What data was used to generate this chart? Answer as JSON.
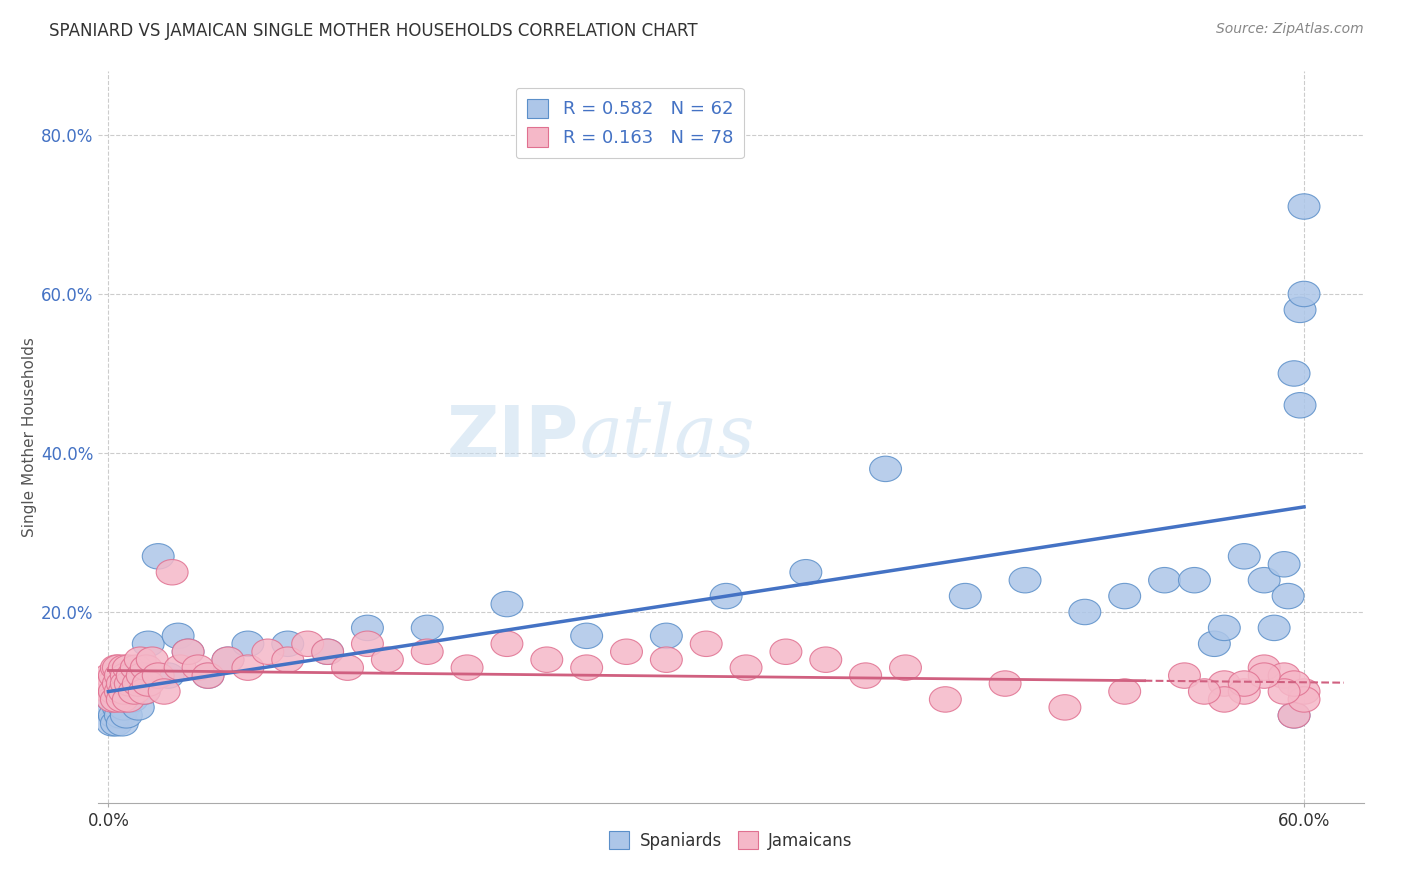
{
  "title": "SPANIARD VS JAMAICAN SINGLE MOTHER HOUSEHOLDS CORRELATION CHART",
  "source": "Source: ZipAtlas.com",
  "ylabel": "Single Mother Households",
  "xlim": [
    -0.005,
    0.63
  ],
  "ylim": [
    -0.04,
    0.88
  ],
  "xticks": [
    0.0,
    0.6
  ],
  "xtick_labels": [
    "0.0%",
    "60.0%"
  ],
  "yticks": [
    0.0,
    0.2,
    0.4,
    0.6,
    0.8
  ],
  "ytick_labels": [
    "",
    "20.0%",
    "40.0%",
    "60.0%",
    "80.0%"
  ],
  "spaniard_color": "#adc6e8",
  "jamaican_color": "#f5b8c8",
  "spaniard_edge_color": "#5b8fc9",
  "jamaican_edge_color": "#e07090",
  "spaniard_line_color": "#4472c4",
  "jamaican_line_color": "#d06080",
  "R_spaniard": 0.582,
  "N_spaniard": 62,
  "R_jamaican": 0.163,
  "N_jamaican": 78,
  "spaniard_x": [
    0.001,
    0.002,
    0.002,
    0.003,
    0.003,
    0.004,
    0.004,
    0.005,
    0.005,
    0.006,
    0.006,
    0.007,
    0.007,
    0.008,
    0.008,
    0.009,
    0.009,
    0.01,
    0.011,
    0.012,
    0.013,
    0.014,
    0.015,
    0.016,
    0.018,
    0.02,
    0.025,
    0.03,
    0.035,
    0.04,
    0.05,
    0.06,
    0.07,
    0.09,
    0.11,
    0.13,
    0.16,
    0.2,
    0.24,
    0.28,
    0.31,
    0.35,
    0.39,
    0.43,
    0.46,
    0.49,
    0.51,
    0.53,
    0.545,
    0.555,
    0.56,
    0.57,
    0.58,
    0.585,
    0.59,
    0.592,
    0.595,
    0.598,
    0.598,
    0.6,
    0.6,
    0.595
  ],
  "spaniard_y": [
    0.08,
    0.09,
    0.06,
    0.07,
    0.1,
    0.09,
    0.06,
    0.08,
    0.11,
    0.07,
    0.1,
    0.09,
    0.06,
    0.08,
    0.1,
    0.07,
    0.09,
    0.1,
    0.12,
    0.09,
    0.11,
    0.1,
    0.08,
    0.12,
    0.1,
    0.16,
    0.27,
    0.12,
    0.17,
    0.15,
    0.12,
    0.14,
    0.16,
    0.16,
    0.15,
    0.18,
    0.18,
    0.21,
    0.17,
    0.17,
    0.22,
    0.25,
    0.38,
    0.22,
    0.24,
    0.2,
    0.22,
    0.24,
    0.24,
    0.16,
    0.18,
    0.27,
    0.24,
    0.18,
    0.26,
    0.22,
    0.5,
    0.46,
    0.58,
    0.71,
    0.6,
    0.07
  ],
  "jamaican_x": [
    0.001,
    0.001,
    0.002,
    0.002,
    0.003,
    0.003,
    0.004,
    0.004,
    0.005,
    0.005,
    0.006,
    0.006,
    0.007,
    0.007,
    0.008,
    0.008,
    0.009,
    0.009,
    0.01,
    0.01,
    0.011,
    0.012,
    0.013,
    0.014,
    0.015,
    0.016,
    0.017,
    0.018,
    0.019,
    0.02,
    0.022,
    0.025,
    0.028,
    0.032,
    0.036,
    0.04,
    0.045,
    0.05,
    0.06,
    0.07,
    0.08,
    0.09,
    0.1,
    0.11,
    0.12,
    0.13,
    0.14,
    0.16,
    0.18,
    0.2,
    0.22,
    0.24,
    0.26,
    0.28,
    0.3,
    0.32,
    0.34,
    0.36,
    0.38,
    0.4,
    0.42,
    0.45,
    0.48,
    0.51,
    0.54,
    0.56,
    0.57,
    0.58,
    0.59,
    0.595,
    0.6,
    0.6,
    0.595,
    0.59,
    0.58,
    0.57,
    0.56,
    0.55
  ],
  "jamaican_y": [
    0.1,
    0.12,
    0.11,
    0.09,
    0.12,
    0.1,
    0.13,
    0.09,
    0.11,
    0.13,
    0.1,
    0.12,
    0.11,
    0.09,
    0.13,
    0.1,
    0.12,
    0.11,
    0.09,
    0.13,
    0.11,
    0.12,
    0.1,
    0.13,
    0.11,
    0.14,
    0.12,
    0.1,
    0.13,
    0.11,
    0.14,
    0.12,
    0.1,
    0.25,
    0.13,
    0.15,
    0.13,
    0.12,
    0.14,
    0.13,
    0.15,
    0.14,
    0.16,
    0.15,
    0.13,
    0.16,
    0.14,
    0.15,
    0.13,
    0.16,
    0.14,
    0.13,
    0.15,
    0.14,
    0.16,
    0.13,
    0.15,
    0.14,
    0.12,
    0.13,
    0.09,
    0.11,
    0.08,
    0.1,
    0.12,
    0.11,
    0.1,
    0.13,
    0.12,
    0.07,
    0.1,
    0.09,
    0.11,
    0.1,
    0.12,
    0.11,
    0.09,
    0.1
  ]
}
